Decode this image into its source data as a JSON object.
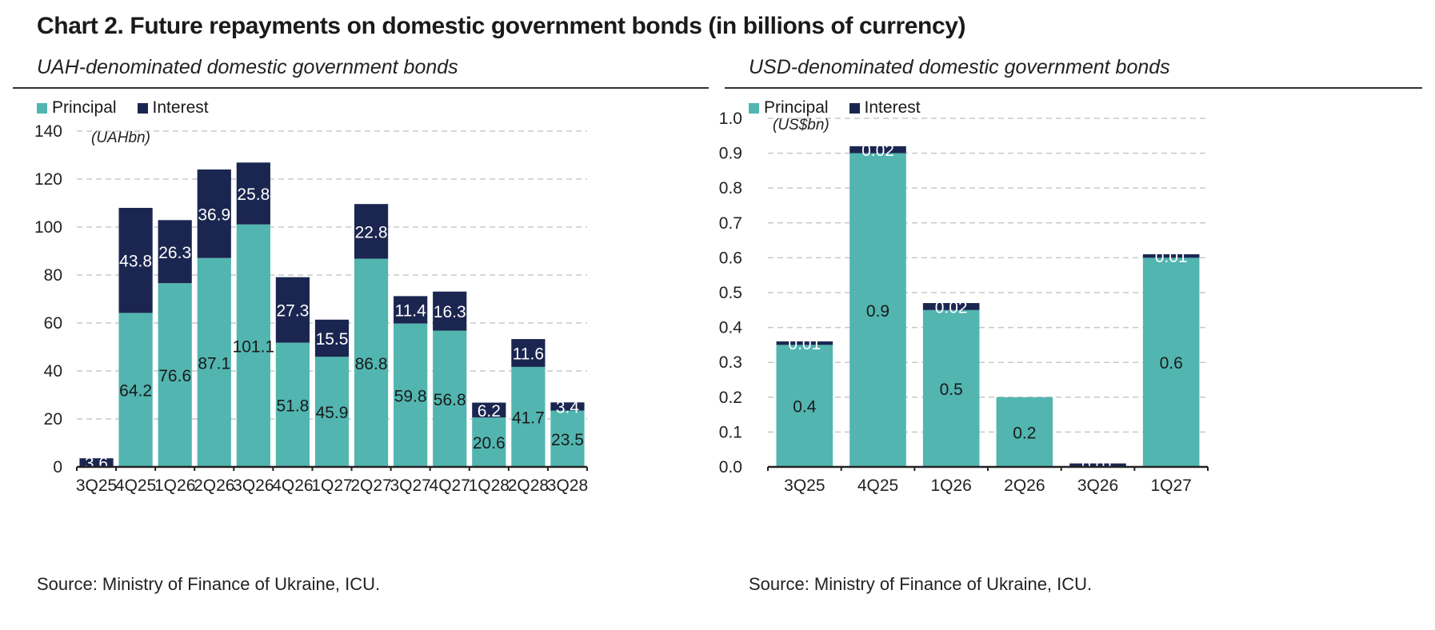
{
  "title": "Chart 2. Future repayments on domestic government bonds (in billions of currency)",
  "colors": {
    "principal": "#52b5b0",
    "interest": "#1b2650",
    "axis": "#222222",
    "grid": "#c8c8c8"
  },
  "chart_data": [
    {
      "type": "bar",
      "stacked": true,
      "subtitle": "UAH-denominated domestic government bonds",
      "unit_label": "(UAHbn)",
      "categories": [
        "3Q25",
        "4Q25",
        "1Q26",
        "2Q26",
        "3Q26",
        "4Q26",
        "1Q27",
        "2Q27",
        "3Q27",
        "4Q27",
        "1Q28",
        "2Q28",
        "3Q28"
      ],
      "series": [
        {
          "name": "Principal",
          "values": [
            0,
            64.2,
            76.6,
            87.1,
            101.1,
            51.8,
            45.9,
            86.8,
            59.8,
            56.8,
            20.6,
            41.7,
            23.5
          ],
          "labels": [
            "",
            "64.2",
            "76.6",
            "87.1",
            "101.1",
            "51.8",
            "45.9",
            "86.8",
            "59.8",
            "56.8",
            "20.6",
            "41.7",
            "23.5"
          ]
        },
        {
          "name": "Interest",
          "values": [
            3.6,
            43.8,
            26.3,
            36.9,
            25.8,
            27.3,
            15.5,
            22.8,
            11.4,
            16.3,
            6.2,
            11.6,
            3.4
          ],
          "labels": [
            "3.6",
            "43.8",
            "26.3",
            "36.9",
            "25.8",
            "27.3",
            "15.5",
            "22.8",
            "11.4",
            "16.3",
            "6.2",
            "11.6",
            "3.4"
          ]
        }
      ],
      "ylim": [
        0,
        140
      ],
      "yticks": [
        0,
        20,
        40,
        60,
        80,
        100,
        120,
        140
      ],
      "ytick_labels": [
        "0",
        "20",
        "40",
        "60",
        "80",
        "100",
        "120",
        "140"
      ],
      "grid": true,
      "legend_position": "top-left",
      "source": "Source: Ministry of Finance of Ukraine, ICU."
    },
    {
      "type": "bar",
      "stacked": true,
      "subtitle": "USD-denominated domestic government bonds",
      "unit_label": "(US$bn)",
      "categories": [
        "3Q25",
        "4Q25",
        "1Q26",
        "2Q26",
        "3Q26",
        "1Q27"
      ],
      "series": [
        {
          "name": "Principal",
          "values": [
            0.35,
            0.9,
            0.45,
            0.2,
            0,
            0.6
          ],
          "labels": [
            "0.4",
            "0.9",
            "0.5",
            "0.2",
            "",
            "0.6"
          ]
        },
        {
          "name": "Interest",
          "values": [
            0.01,
            0.02,
            0.02,
            0,
            0.01,
            0.01
          ],
          "labels": [
            "0.01",
            "0.02",
            "0.02",
            "",
            "0.01",
            "0.01"
          ]
        }
      ],
      "ylim": [
        0,
        1.0
      ],
      "yticks": [
        0,
        0.1,
        0.2,
        0.3,
        0.4,
        0.5,
        0.6,
        0.7,
        0.8,
        0.9,
        1.0
      ],
      "ytick_labels": [
        "0.0",
        "0.1",
        "0.2",
        "0.3",
        "0.4",
        "0.5",
        "0.6",
        "0.7",
        "0.8",
        "0.9",
        "1.0"
      ],
      "grid": true,
      "legend_position": "top-left",
      "source": "Source: Ministry of Finance of Ukraine, ICU."
    }
  ]
}
